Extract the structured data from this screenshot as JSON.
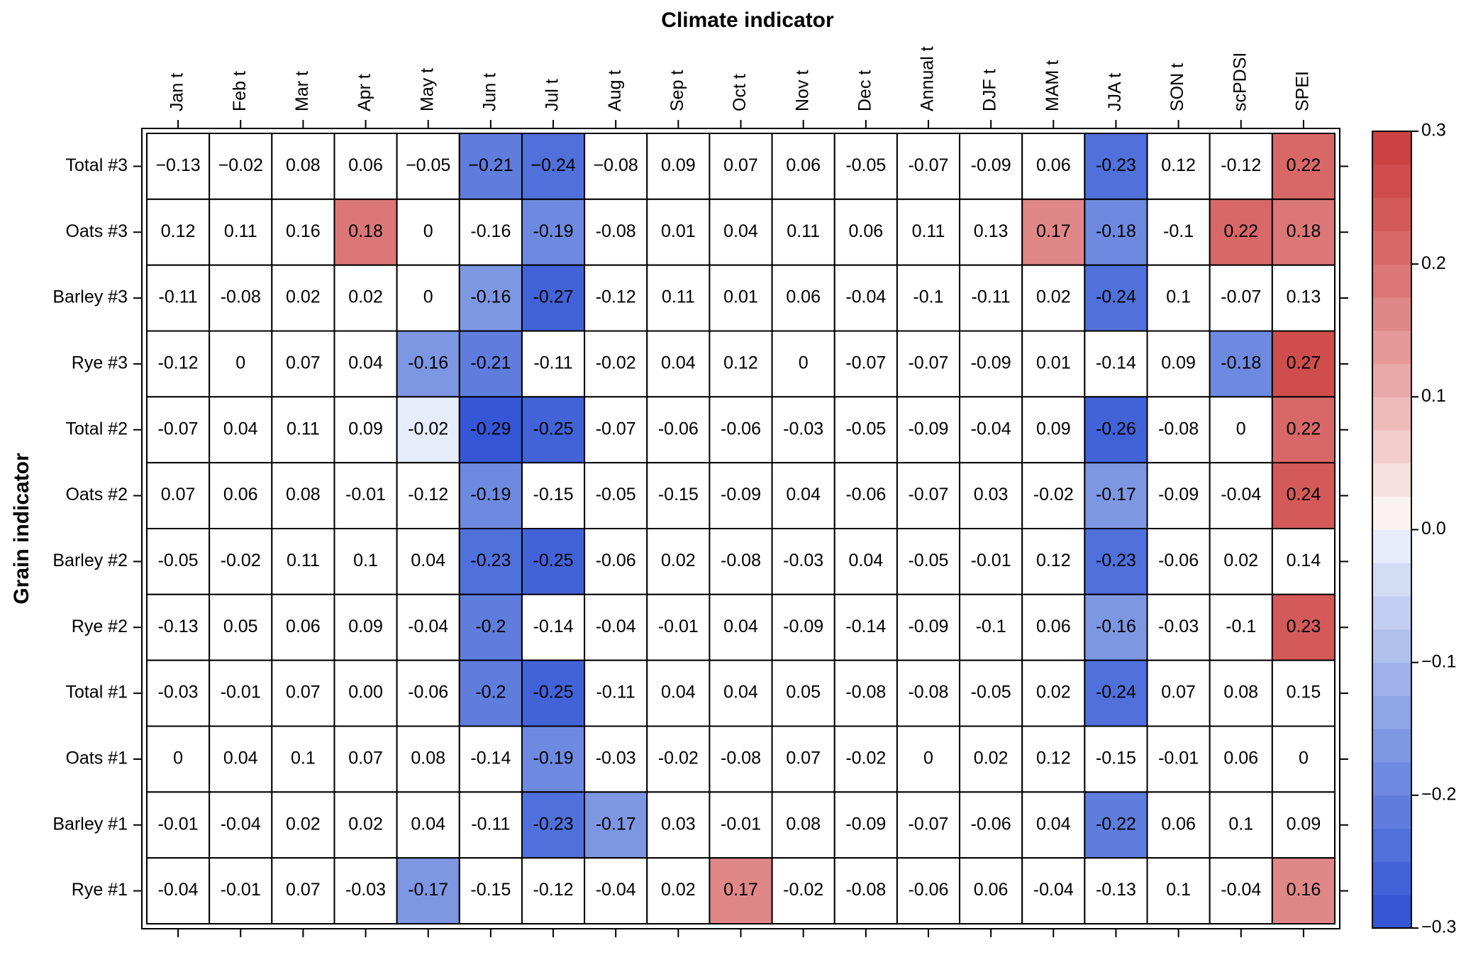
{
  "chart_data": {
    "type": "heatmap",
    "title": "Climate indicator",
    "y_label": "Grain indicator",
    "columns": [
      "Jan t",
      "Feb t",
      "Mar t",
      "Apr t",
      "May t",
      "Jun t",
      "Jul t",
      "Aug t",
      "Sep t",
      "Oct t",
      "Nov t",
      "Dec t",
      "Annual t",
      "DJF t",
      "MAM t",
      "JJA t",
      "SON t",
      "scPDSI",
      "SPEI"
    ],
    "rows": [
      "Total #3",
      "Oats #3",
      "Barley #3",
      "Rye #3",
      "Total #2",
      "Oats #2",
      "Barley #2",
      "Rye #2",
      "Total #1",
      "Oats #1",
      "Barley #1",
      "Rye #1"
    ],
    "values": [
      [
        -0.13,
        -0.02,
        0.08,
        0.06,
        -0.05,
        -0.21,
        -0.24,
        -0.08,
        0.09,
        0.07,
        0.06,
        -0.05,
        -0.07,
        -0.09,
        0.06,
        -0.23,
        0.12,
        -0.12,
        0.22
      ],
      [
        0.12,
        0.11,
        0.16,
        0.18,
        0,
        -0.16,
        -0.19,
        -0.08,
        0.01,
        0.04,
        0.11,
        0.06,
        0.11,
        0.13,
        0.17,
        -0.18,
        -0.1,
        0.22,
        0.18
      ],
      [
        -0.11,
        -0.08,
        0.02,
        0.02,
        0,
        -0.16,
        -0.27,
        -0.12,
        0.11,
        0.01,
        0.06,
        -0.04,
        -0.1,
        -0.11,
        0.02,
        -0.24,
        0.1,
        -0.07,
        0.13
      ],
      [
        -0.12,
        0,
        0.07,
        0.04,
        -0.16,
        -0.21,
        -0.11,
        -0.02,
        0.04,
        0.12,
        0,
        -0.07,
        -0.07,
        -0.09,
        0.01,
        -0.14,
        0.09,
        -0.18,
        0.27
      ],
      [
        -0.07,
        0.04,
        0.11,
        0.09,
        -0.02,
        -0.29,
        -0.25,
        -0.07,
        -0.06,
        -0.06,
        -0.03,
        -0.05,
        -0.09,
        -0.04,
        0.09,
        -0.26,
        -0.08,
        0,
        0.22
      ],
      [
        0.07,
        0.06,
        0.08,
        -0.01,
        -0.12,
        -0.19,
        -0.15,
        -0.05,
        -0.15,
        -0.09,
        0.04,
        -0.06,
        -0.07,
        0.03,
        -0.02,
        -0.17,
        -0.09,
        -0.04,
        0.24
      ],
      [
        -0.05,
        -0.02,
        0.11,
        0.1,
        0.04,
        -0.23,
        -0.25,
        -0.06,
        0.02,
        -0.08,
        -0.03,
        0.04,
        -0.05,
        -0.01,
        0.12,
        -0.23,
        -0.06,
        0.02,
        0.14
      ],
      [
        -0.13,
        0.05,
        0.06,
        0.09,
        -0.04,
        -0.2,
        -0.14,
        -0.04,
        -0.01,
        0.04,
        -0.09,
        -0.14,
        -0.09,
        -0.1,
        0.06,
        -0.16,
        -0.03,
        -0.1,
        0.23
      ],
      [
        -0.03,
        -0.01,
        0.07,
        0,
        -0.06,
        -0.2,
        -0.25,
        -0.11,
        0.04,
        0.04,
        0.05,
        -0.08,
        -0.08,
        -0.05,
        0.02,
        -0.24,
        0.07,
        0.08,
        0.15
      ],
      [
        0,
        0.04,
        0.1,
        0.07,
        0.08,
        -0.14,
        -0.19,
        -0.03,
        -0.02,
        -0.08,
        0.07,
        -0.02,
        0,
        0.02,
        0.12,
        -0.15,
        -0.01,
        0.06,
        0
      ],
      [
        -0.01,
        -0.04,
        0.02,
        0.02,
        0.04,
        -0.11,
        -0.23,
        -0.17,
        0.03,
        -0.01,
        0.08,
        -0.09,
        -0.07,
        -0.06,
        0.04,
        -0.22,
        0.06,
        0.1,
        0.09
      ],
      [
        -0.04,
        -0.01,
        0.07,
        -0.03,
        -0.17,
        -0.15,
        -0.12,
        -0.04,
        0.02,
        0.17,
        -0.02,
        -0.08,
        -0.06,
        0.06,
        -0.04,
        -0.13,
        0.1,
        -0.04,
        0.16
      ]
    ],
    "value_labels": [
      [
        "−0.13",
        "−0.02",
        "0.08",
        "0.06",
        "−0.05",
        "−0.21",
        "−0.24",
        "−0.08",
        "0.09",
        "0.07",
        "0.06",
        "-0.05",
        "-0.07",
        "-0.09",
        "0.06",
        "-0.23",
        "0.12",
        "-0.12",
        "0.22"
      ],
      [
        "0.12",
        "0.11",
        "0.16",
        "0.18",
        "0",
        "-0.16",
        "-0.19",
        "-0.08",
        "0.01",
        "0.04",
        "0.11",
        "0.06",
        "0.11",
        "0.13",
        "0.17",
        "-0.18",
        "-0.1",
        "0.22",
        "0.18"
      ],
      [
        "-0.11",
        "-0.08",
        "0.02",
        "0.02",
        "0",
        "-0.16",
        "-0.27",
        "-0.12",
        "0.11",
        "0.01",
        "0.06",
        "-0.04",
        "-0.1",
        "-0.11",
        "0.02",
        "-0.24",
        "0.1",
        "-0.07",
        "0.13"
      ],
      [
        "-0.12",
        "0",
        "0.07",
        "0.04",
        "-0.16",
        "-0.21",
        "-0.11",
        "-0.02",
        "0.04",
        "0.12",
        "0",
        "-0.07",
        "-0.07",
        "-0.09",
        "0.01",
        "-0.14",
        "0.09",
        "-0.18",
        "0.27"
      ],
      [
        "-0.07",
        "0.04",
        "0.11",
        "0.09",
        "-0.02",
        "-0.29",
        "-0.25",
        "-0.07",
        "-0.06",
        "-0.06",
        "-0.03",
        "-0.05",
        "-0.09",
        "-0.04",
        "0.09",
        "-0.26",
        "-0.08",
        "0",
        "0.22"
      ],
      [
        "0.07",
        "0.06",
        "0.08",
        "-0.01",
        "-0.12",
        "-0.19",
        "-0.15",
        "-0.05",
        "-0.15",
        "-0.09",
        "0.04",
        "-0.06",
        "-0.07",
        "0.03",
        "-0.02",
        "-0.17",
        "-0.09",
        "-0.04",
        "0.24"
      ],
      [
        "-0.05",
        "-0.02",
        "0.11",
        "0.1",
        "0.04",
        "-0.23",
        "-0.25",
        "-0.06",
        "0.02",
        "-0.08",
        "-0.03",
        "0.04",
        "-0.05",
        "-0.01",
        "0.12",
        "-0.23",
        "-0.06",
        "0.02",
        "0.14"
      ],
      [
        "-0.13",
        "0.05",
        "0.06",
        "0.09",
        "-0.04",
        "-0.2",
        "-0.14",
        "-0.04",
        "-0.01",
        "0.04",
        "-0.09",
        "-0.14",
        "-0.09",
        "-0.1",
        "0.06",
        "-0.16",
        "-0.03",
        "-0.1",
        "0.23"
      ],
      [
        "-0.03",
        "-0.01",
        "0.07",
        "0.00",
        "-0.06",
        "-0.2",
        "-0.25",
        "-0.11",
        "0.04",
        "0.04",
        "0.05",
        "-0.08",
        "-0.08",
        "-0.05",
        "0.02",
        "-0.24",
        "0.07",
        "0.08",
        "0.15"
      ],
      [
        "0",
        "0.04",
        "0.1",
        "0.07",
        "0.08",
        "-0.14",
        "-0.19",
        "-0.03",
        "-0.02",
        "-0.08",
        "0.07",
        "-0.02",
        "0",
        "0.02",
        "0.12",
        "-0.15",
        "-0.01",
        "0.06",
        "0"
      ],
      [
        "-0.01",
        "-0.04",
        "0.02",
        "0.02",
        "0.04",
        "-0.11",
        "-0.23",
        "-0.17",
        "0.03",
        "-0.01",
        "0.08",
        "-0.09",
        "-0.07",
        "-0.06",
        "0.04",
        "-0.22",
        "0.06",
        "0.1",
        "0.09"
      ],
      [
        "-0.04",
        "-0.01",
        "0.07",
        "-0.03",
        "-0.17",
        "-0.15",
        "-0.12",
        "-0.04",
        "0.02",
        "0.17",
        "-0.02",
        "-0.08",
        "-0.06",
        "0.06",
        "-0.04",
        "-0.13",
        "0.1",
        "-0.04",
        "0.16"
      ]
    ],
    "shaded": [
      [
        false,
        false,
        false,
        false,
        false,
        true,
        true,
        false,
        false,
        false,
        false,
        false,
        false,
        false,
        false,
        true,
        false,
        false,
        true
      ],
      [
        false,
        false,
        false,
        true,
        false,
        false,
        true,
        false,
        false,
        false,
        false,
        false,
        false,
        false,
        true,
        true,
        false,
        true,
        true
      ],
      [
        false,
        false,
        false,
        false,
        false,
        true,
        true,
        false,
        false,
        false,
        false,
        false,
        false,
        false,
        false,
        true,
        false,
        false,
        false
      ],
      [
        false,
        false,
        false,
        false,
        true,
        true,
        false,
        false,
        false,
        false,
        false,
        false,
        false,
        false,
        false,
        false,
        false,
        true,
        true
      ],
      [
        false,
        false,
        false,
        false,
        true,
        true,
        true,
        false,
        false,
        false,
        false,
        false,
        false,
        false,
        false,
        true,
        false,
        false,
        true
      ],
      [
        false,
        false,
        false,
        false,
        false,
        true,
        false,
        false,
        false,
        false,
        false,
        false,
        false,
        false,
        false,
        true,
        false,
        false,
        true
      ],
      [
        false,
        false,
        false,
        false,
        false,
        true,
        true,
        false,
        false,
        false,
        false,
        false,
        false,
        false,
        false,
        true,
        false,
        false,
        false
      ],
      [
        false,
        false,
        false,
        false,
        false,
        true,
        false,
        false,
        false,
        false,
        false,
        false,
        false,
        false,
        false,
        true,
        false,
        false,
        true
      ],
      [
        false,
        false,
        false,
        false,
        false,
        true,
        true,
        false,
        false,
        false,
        false,
        false,
        false,
        false,
        false,
        true,
        false,
        false,
        false
      ],
      [
        false,
        false,
        false,
        false,
        false,
        false,
        true,
        false,
        false,
        false,
        false,
        false,
        false,
        false,
        false,
        false,
        false,
        false,
        false
      ],
      [
        false,
        false,
        false,
        false,
        false,
        false,
        true,
        true,
        false,
        false,
        false,
        false,
        false,
        false,
        false,
        true,
        false,
        false,
        false
      ],
      [
        false,
        false,
        false,
        false,
        true,
        false,
        false,
        false,
        false,
        true,
        false,
        false,
        false,
        false,
        false,
        false,
        false,
        false,
        true
      ]
    ],
    "clim": [
      -0.3,
      0.3
    ],
    "cticks": [
      {
        "value": -0.3,
        "label": "−0.3"
      },
      {
        "value": -0.2,
        "label": "−0.2"
      },
      {
        "value": -0.1,
        "label": "−0.1"
      },
      {
        "value": 0,
        "label": "0.0"
      },
      0.1,
      0.2,
      0.3
    ],
    "colors": [
      "#3556d6",
      "#4263d8",
      "#5070db",
      "#5f7ddd",
      "#6e8ae0",
      "#7e97e3",
      "#8ea5e6",
      "#9eb2e9",
      "#afc0ed",
      "#c0cef1",
      "#d2dcf5",
      "#e6ecf9",
      "#fbf3f2",
      "#f7e0df",
      "#f2cdcc",
      "#eebbba",
      "#e9a9a8",
      "#e59898",
      "#e08787",
      "#dc7777",
      "#d86868",
      "#d45a5a",
      "#d04d4d",
      "#cc4242"
    ]
  }
}
